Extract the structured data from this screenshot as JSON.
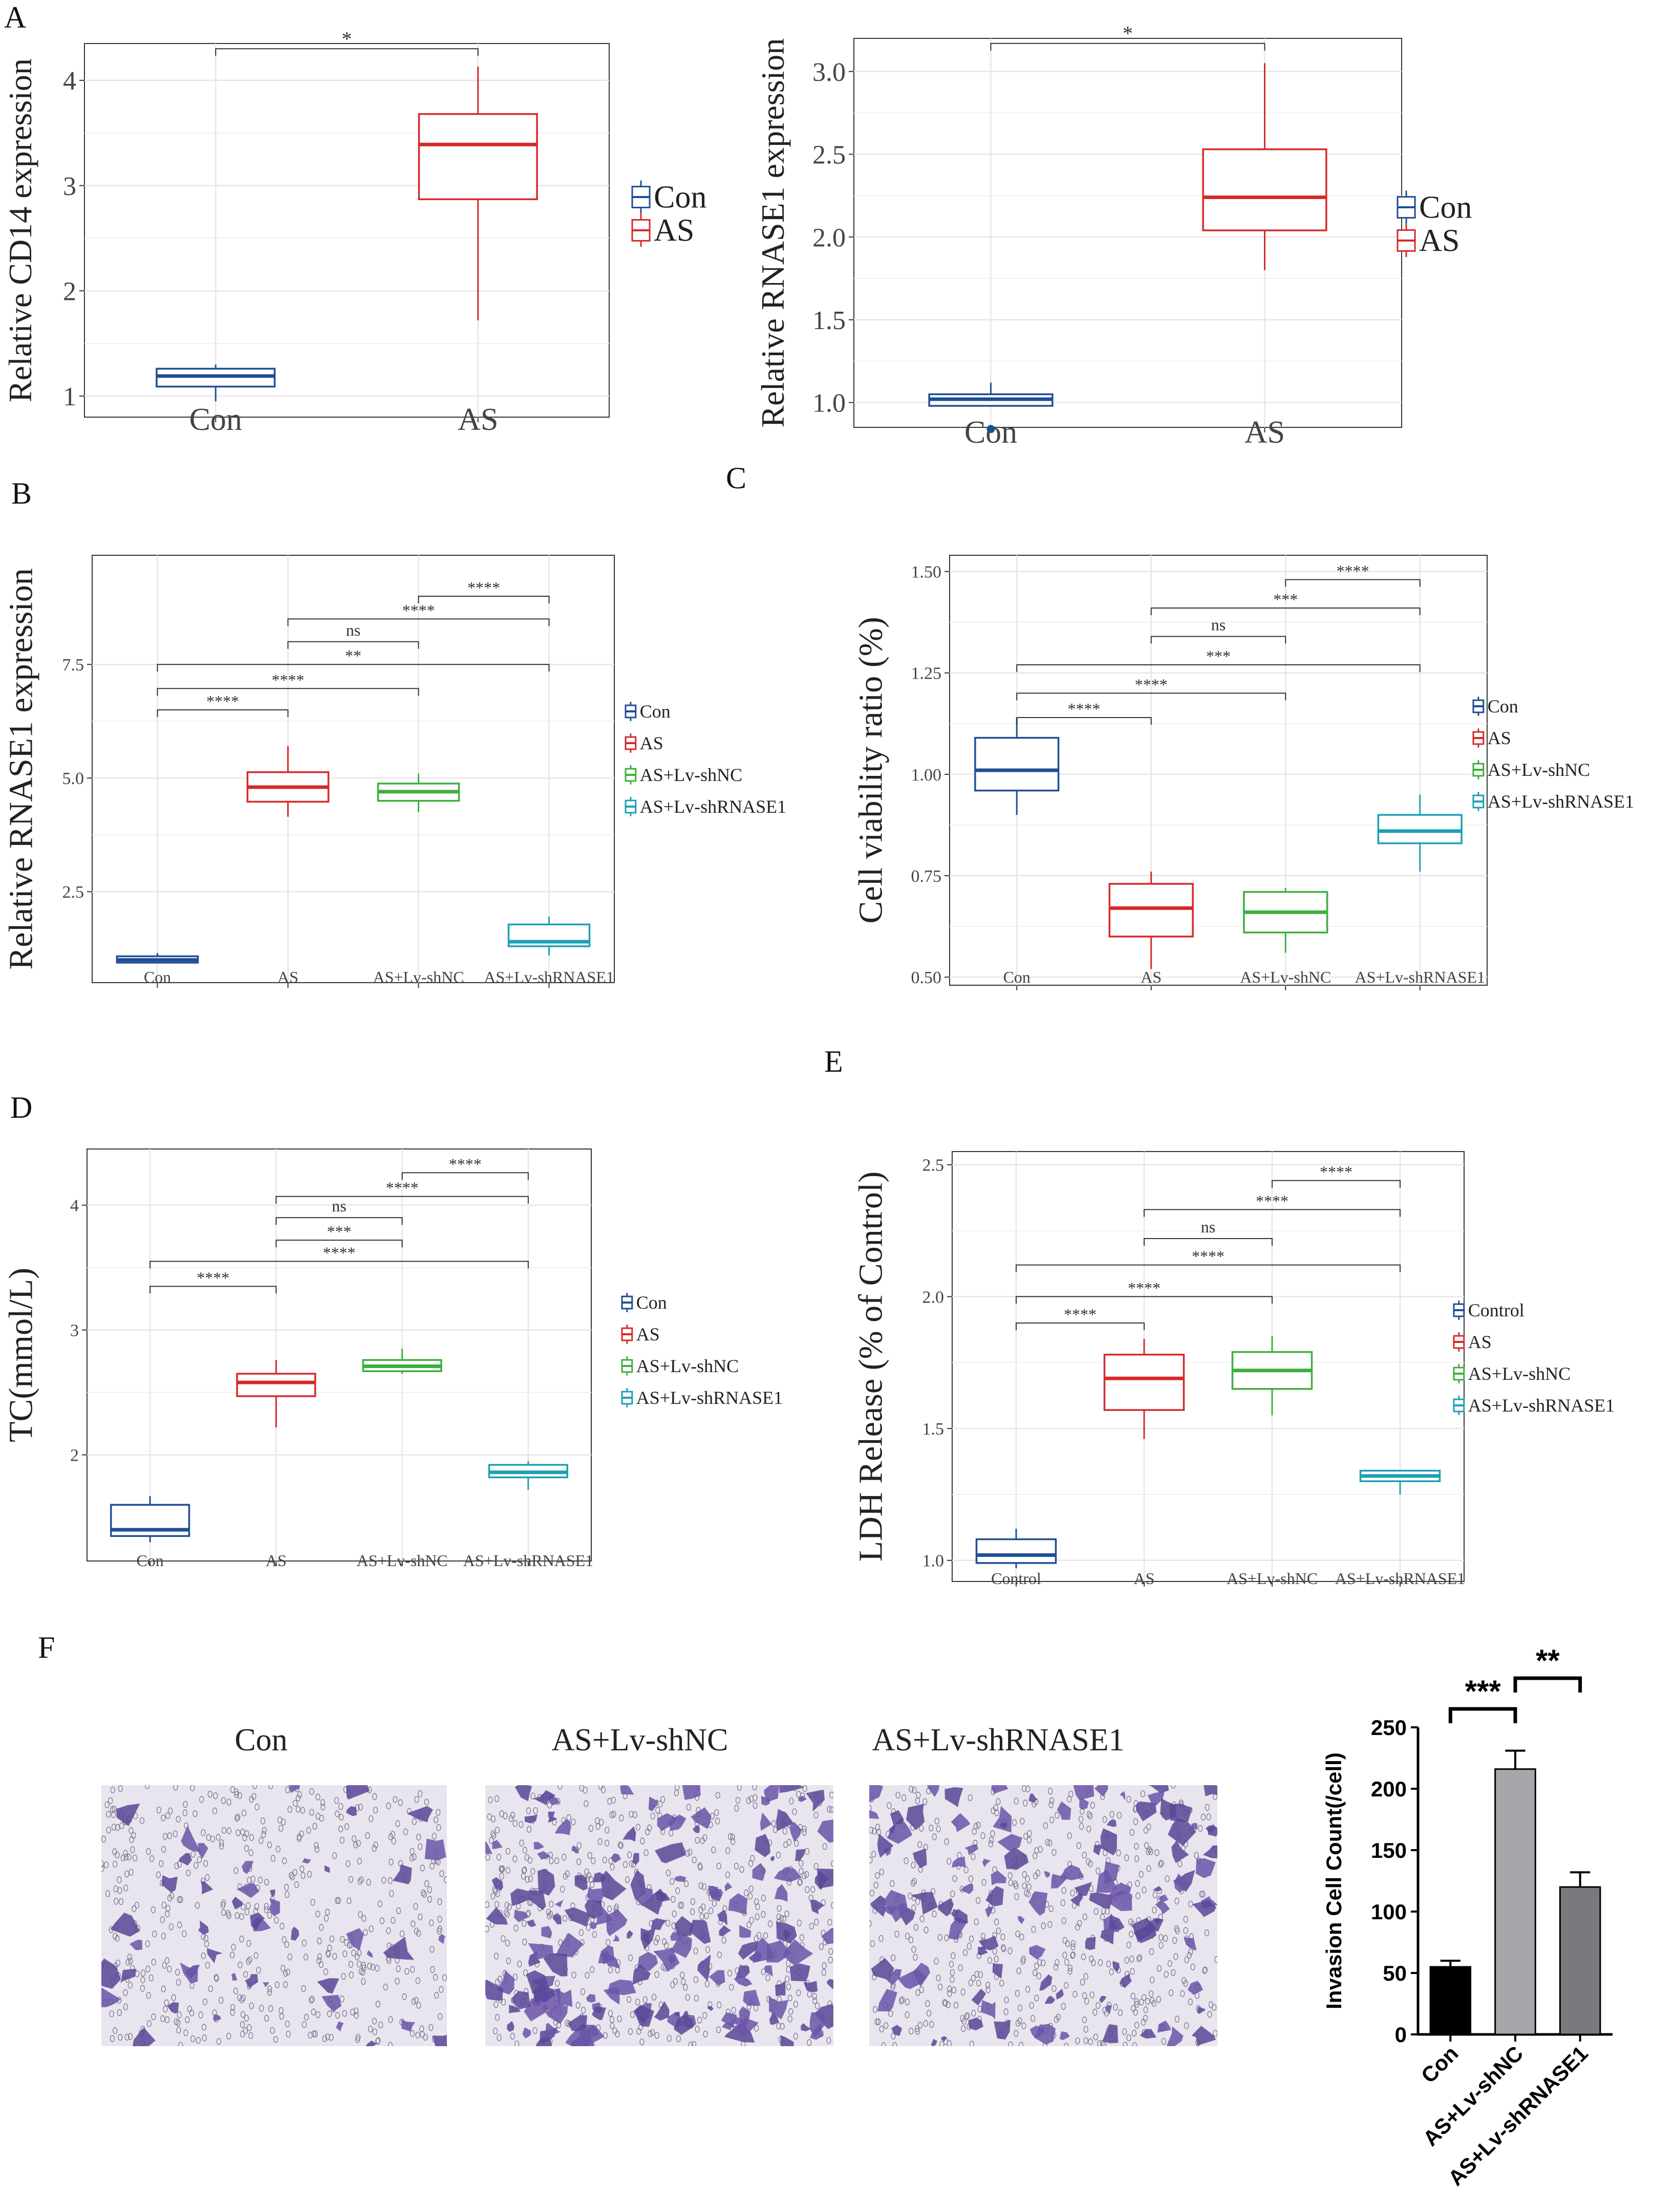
{
  "panel_letters": [
    "A",
    "B",
    "C",
    "D",
    "E",
    "F"
  ],
  "chart_data": [
    {
      "id": "A1",
      "type": "box",
      "ylabel": "Relative CD14 expression",
      "categories": [
        "Con",
        "AS"
      ],
      "ylim": [
        0.8,
        4.35
      ],
      "yticks": [
        "1",
        "2",
        "3",
        "4"
      ],
      "boxes": [
        {
          "cat": "Con",
          "min": 0.95,
          "q1": 1.09,
          "median": 1.19,
          "q3": 1.26,
          "max": 1.3,
          "color": "#1f4e96"
        },
        {
          "cat": "AS",
          "min": 1.72,
          "q1": 2.87,
          "median": 3.39,
          "q3": 3.68,
          "max": 4.13,
          "color": "#d62a2a"
        }
      ],
      "outliers": [],
      "comparisons": [
        {
          "a": 0,
          "b": 1,
          "label": "*",
          "y": 4.3
        }
      ],
      "legend": [
        {
          "label": "Con",
          "color": "#1f4e96"
        },
        {
          "label": "AS",
          "color": "#d62a2a"
        }
      ]
    },
    {
      "id": "A2",
      "type": "box",
      "ylabel": "Relative RNASE1 expression",
      "categories": [
        "Con",
        "AS"
      ],
      "ylim": [
        0.85,
        3.2
      ],
      "yticks": [
        "1.0",
        "1.5",
        "2.0",
        "2.5",
        "3.0"
      ],
      "boxes": [
        {
          "cat": "Con",
          "min": 0.98,
          "q1": 0.98,
          "median": 1.02,
          "q3": 1.05,
          "max": 1.12,
          "color": "#1f4e96"
        },
        {
          "cat": "AS",
          "min": 1.8,
          "q1": 2.04,
          "median": 2.24,
          "q3": 2.53,
          "max": 3.05,
          "color": "#d62a2a"
        }
      ],
      "outliers": [
        {
          "cat": "Con",
          "value": 0.84,
          "color": "#1f4e96"
        }
      ],
      "comparisons": [
        {
          "a": 0,
          "b": 1,
          "label": "*",
          "y": 3.17
        }
      ],
      "legend": [
        {
          "label": "Con",
          "color": "#1f4e96"
        },
        {
          "label": "AS",
          "color": "#d62a2a"
        }
      ]
    },
    {
      "id": "B",
      "type": "box",
      "ylabel": "Relative RNASE1 expression",
      "categories": [
        "Con",
        "AS",
        "AS+Lv-shNC",
        "AS+Lv-shRNASE1"
      ],
      "ylim": [
        0.5,
        9.9
      ],
      "yticks": [
        "2.5",
        "5.0",
        "7.5"
      ],
      "ytick_values": [
        2.5,
        5.0,
        7.5
      ],
      "boxes": [
        {
          "cat": "Con",
          "min": 0.93,
          "q1": 0.94,
          "median": 1.0,
          "q3": 1.08,
          "max": 1.15,
          "color": "#1f4e96"
        },
        {
          "cat": "AS",
          "min": 4.15,
          "q1": 4.48,
          "median": 4.8,
          "q3": 5.13,
          "max": 5.7,
          "color": "#d62a2a"
        },
        {
          "cat": "AS+Lv-shNC",
          "min": 4.25,
          "q1": 4.5,
          "median": 4.7,
          "q3": 4.88,
          "max": 5.1,
          "color": "#3fae3f"
        },
        {
          "cat": "AS+Lv-shRNASE1",
          "min": 1.1,
          "q1": 1.3,
          "median": 1.4,
          "q3": 1.78,
          "max": 1.95,
          "color": "#1ea0b5"
        }
      ],
      "outliers": [],
      "comparisons": [
        {
          "a": 0,
          "b": 1,
          "label": "****",
          "y": 6.5
        },
        {
          "a": 0,
          "b": 2,
          "label": "****",
          "y": 6.97
        },
        {
          "a": 0,
          "b": 3,
          "label": "**",
          "y": 7.5
        },
        {
          "a": 1,
          "b": 2,
          "label": "ns",
          "y": 8.0
        },
        {
          "a": 1,
          "b": 3,
          "label": "****",
          "y": 8.5
        },
        {
          "a": 2,
          "b": 3,
          "label": "****",
          "y": 9.0
        }
      ],
      "legend": [
        {
          "label": "Con",
          "color": "#1f4e96"
        },
        {
          "label": "AS",
          "color": "#d62a2a"
        },
        {
          "label": "AS+Lv-shNC",
          "color": "#3fae3f"
        },
        {
          "label": "AS+Lv-shRNASE1",
          "color": "#1ea0b5"
        }
      ]
    },
    {
      "id": "C",
      "type": "box",
      "ylabel": "Cell viability ratio (%)",
      "categories": [
        "Con",
        "AS",
        "AS+Lv-shNC",
        "AS+Lv-shRNASE1"
      ],
      "ylim": [
        0.48,
        1.54
      ],
      "yticks": [
        "0.50",
        "0.75",
        "1.00",
        "1.25",
        "1.50"
      ],
      "ytick_values": [
        0.5,
        0.75,
        1.0,
        1.25,
        1.5
      ],
      "boxes": [
        {
          "cat": "Con",
          "min": 0.9,
          "q1": 0.96,
          "median": 1.01,
          "q3": 1.09,
          "max": 1.14,
          "color": "#1f4e96"
        },
        {
          "cat": "AS",
          "min": 0.52,
          "q1": 0.6,
          "median": 0.67,
          "q3": 0.73,
          "max": 0.76,
          "color": "#d62a2a"
        },
        {
          "cat": "AS+Lv-shNC",
          "min": 0.56,
          "q1": 0.61,
          "median": 0.66,
          "q3": 0.71,
          "max": 0.72,
          "color": "#3fae3f"
        },
        {
          "cat": "AS+Lv-shRNASE1",
          "min": 0.76,
          "q1": 0.83,
          "median": 0.86,
          "q3": 0.9,
          "max": 0.95,
          "color": "#1ea0b5"
        }
      ],
      "outliers": [],
      "comparisons": [
        {
          "a": 0,
          "b": 1,
          "label": "****",
          "y": 1.14
        },
        {
          "a": 0,
          "b": 2,
          "label": "****",
          "y": 1.2
        },
        {
          "a": 0,
          "b": 3,
          "label": "***",
          "y": 1.27
        },
        {
          "a": 1,
          "b": 2,
          "label": "ns",
          "y": 1.34
        },
        {
          "a": 1,
          "b": 3,
          "label": "***",
          "y": 1.41
        },
        {
          "a": 2,
          "b": 3,
          "label": "****",
          "y": 1.48
        }
      ],
      "legend": [
        {
          "label": "Con",
          "color": "#1f4e96"
        },
        {
          "label": "AS",
          "color": "#d62a2a"
        },
        {
          "label": "AS+Lv-shNC",
          "color": "#3fae3f"
        },
        {
          "label": "AS+Lv-shRNASE1",
          "color": "#1ea0b5"
        }
      ]
    },
    {
      "id": "D",
      "type": "box",
      "ylabel": "TC(mmol/L)",
      "categories": [
        "Con",
        "AS",
        "AS+Lv-shNC",
        "AS+Lv-shRNASE1"
      ],
      "ylim": [
        1.15,
        4.45
      ],
      "yticks": [
        "2",
        "3",
        "4"
      ],
      "ytick_values": [
        2,
        3,
        4
      ],
      "boxes": [
        {
          "cat": "Con",
          "min": 1.3,
          "q1": 1.35,
          "median": 1.4,
          "q3": 1.6,
          "max": 1.67,
          "color": "#1f4e96"
        },
        {
          "cat": "AS",
          "min": 2.22,
          "q1": 2.47,
          "median": 2.58,
          "q3": 2.65,
          "max": 2.76,
          "color": "#d62a2a"
        },
        {
          "cat": "AS+Lv-shNC",
          "min": 2.65,
          "q1": 2.67,
          "median": 2.71,
          "q3": 2.76,
          "max": 2.85,
          "color": "#3fae3f"
        },
        {
          "cat": "AS+Lv-shRNASE1",
          "min": 1.72,
          "q1": 1.82,
          "median": 1.86,
          "q3": 1.92,
          "max": 1.95,
          "color": "#1ea0b5"
        }
      ],
      "outliers": [],
      "comparisons": [
        {
          "a": 0,
          "b": 1,
          "label": "****",
          "y": 3.35
        },
        {
          "a": 0,
          "b": 3,
          "label": "****",
          "y": 3.55
        },
        {
          "a": 1,
          "b": 2,
          "label": "***",
          "y": 3.72
        },
        {
          "a": 1,
          "b": 2,
          "label": "ns",
          "y": 3.9
        },
        {
          "a": 1,
          "b": 3,
          "label": "****",
          "y": 4.07
        },
        {
          "a": 2,
          "b": 3,
          "label": "****",
          "y": 4.26
        }
      ],
      "legend": [
        {
          "label": "Con",
          "color": "#1f4e96"
        },
        {
          "label": "AS",
          "color": "#d62a2a"
        },
        {
          "label": "AS+Lv-shNC",
          "color": "#3fae3f"
        },
        {
          "label": "AS+Lv-shRNASE1",
          "color": "#1ea0b5"
        }
      ]
    },
    {
      "id": "E",
      "type": "box",
      "ylabel": "LDH Release    (% of Control)",
      "categories": [
        "Control",
        "AS",
        "AS+Lv-shNC",
        "AS+Lv-shRNASE1"
      ],
      "ylim": [
        0.92,
        2.55
      ],
      "yticks": [
        "1.0",
        "1.5",
        "2.0",
        "2.5"
      ],
      "ytick_values": [
        1.0,
        1.5,
        2.0,
        2.5
      ],
      "boxes": [
        {
          "cat": "Control",
          "min": 0.97,
          "q1": 0.99,
          "median": 1.02,
          "q3": 1.08,
          "max": 1.12,
          "color": "#1f4e96"
        },
        {
          "cat": "AS",
          "min": 1.46,
          "q1": 1.57,
          "median": 1.69,
          "q3": 1.78,
          "max": 1.84,
          "color": "#d62a2a"
        },
        {
          "cat": "AS+Lv-shNC",
          "min": 1.55,
          "q1": 1.65,
          "median": 1.72,
          "q3": 1.79,
          "max": 1.85,
          "color": "#3fae3f"
        },
        {
          "cat": "AS+Lv-shRNASE1",
          "min": 1.25,
          "q1": 1.3,
          "median": 1.32,
          "q3": 1.34,
          "max": 1.34,
          "color": "#1ea0b5"
        }
      ],
      "outliers": [],
      "comparisons": [
        {
          "a": 0,
          "b": 1,
          "label": "****",
          "y": 1.9
        },
        {
          "a": 0,
          "b": 2,
          "label": "****",
          "y": 2.0
        },
        {
          "a": 0,
          "b": 3,
          "label": "****",
          "y": 2.12
        },
        {
          "a": 1,
          "b": 2,
          "label": "ns",
          "y": 2.22
        },
        {
          "a": 1,
          "b": 3,
          "label": "****",
          "y": 2.33
        },
        {
          "a": 2,
          "b": 3,
          "label": "****",
          "y": 2.44
        }
      ],
      "legend": [
        {
          "label": "Control",
          "color": "#1f4e96"
        },
        {
          "label": "AS",
          "color": "#d62a2a"
        },
        {
          "label": "AS+Lv-shNC",
          "color": "#3fae3f"
        },
        {
          "label": "AS+Lv-shRNASE1",
          "color": "#1ea0b5"
        }
      ]
    },
    {
      "id": "F",
      "type": "bar",
      "ylabel": "Invasion Cell Count(/cell)",
      "categories": [
        "Con",
        "AS+Lv-shNC",
        "AS+Lv-shRNASE1"
      ],
      "values": [
        55,
        216,
        120
      ],
      "errors": [
        5,
        15,
        12
      ],
      "colors": [
        "#000000",
        "#a7a7ab",
        "#7a7a7e"
      ],
      "ylim": [
        0,
        250
      ],
      "yticks": [
        "0",
        "50",
        "100",
        "150",
        "200",
        "250"
      ],
      "ytick_values": [
        0,
        50,
        100,
        150,
        200,
        250
      ],
      "comparisons": [
        {
          "a": 0,
          "b": 1,
          "label": "***",
          "y": 265
        },
        {
          "a": 1,
          "b": 2,
          "label": "**",
          "y": 290
        }
      ]
    }
  ],
  "micrographs": {
    "labels": [
      "Con",
      "AS+Lv-shNC",
      "AS+Lv-shRNASE1"
    ],
    "densities": [
      0.18,
      0.62,
      0.45
    ]
  }
}
